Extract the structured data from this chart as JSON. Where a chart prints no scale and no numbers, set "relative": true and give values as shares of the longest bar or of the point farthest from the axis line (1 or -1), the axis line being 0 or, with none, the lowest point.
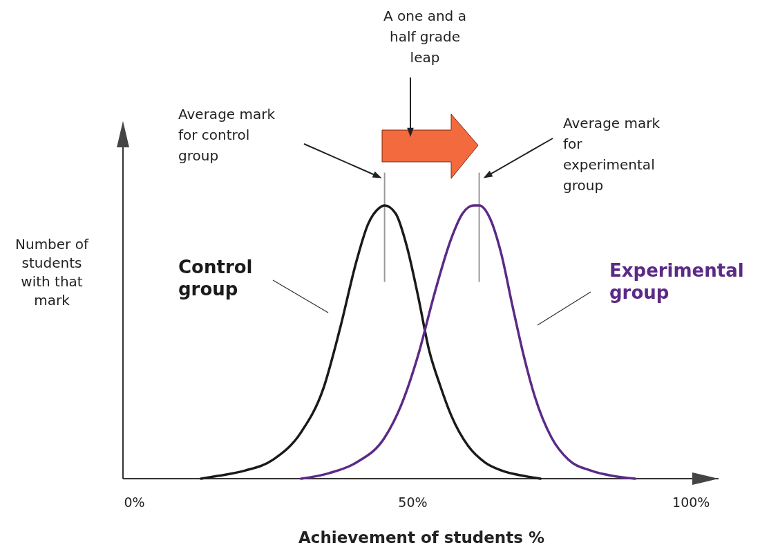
{
  "chart_data": {
    "type": "line",
    "relative": true,
    "xlabel": "Achievement of students %",
    "ylabel": "Number of students with that mark",
    "xlim": [
      -2,
      105
    ],
    "xticks": [
      {
        "value": 0,
        "label": "0%"
      },
      {
        "value": 50,
        "label": "50%"
      },
      {
        "value": 100,
        "label": "100%"
      }
    ],
    "grid": false,
    "legend": false,
    "marker": "none",
    "line_style": "solid",
    "series": [
      {
        "name": "Control group",
        "color": "#1a1a1a",
        "x": [
          12,
          15,
          20,
          25,
          30,
          34,
          37,
          40,
          42,
          44,
          45,
          47,
          49,
          51,
          53,
          55,
          57,
          60,
          63,
          66,
          70,
          73
        ],
        "values": [
          0,
          0.01,
          0.03,
          0.07,
          0.17,
          0.33,
          0.55,
          0.8,
          0.93,
          0.99,
          1,
          0.97,
          0.85,
          0.67,
          0.47,
          0.34,
          0.23,
          0.12,
          0.06,
          0.03,
          0.01,
          0
        ]
      },
      {
        "name": "Experimental group",
        "color": "#5b2a86",
        "x": [
          30,
          35,
          40,
          45,
          48,
          51,
          54,
          57,
          59,
          61,
          62,
          64,
          66,
          68,
          70,
          72,
          75,
          78,
          82,
          86,
          90
        ],
        "values": [
          0,
          0.02,
          0.06,
          0.15,
          0.27,
          0.45,
          0.68,
          0.88,
          0.97,
          1,
          1,
          0.95,
          0.82,
          0.63,
          0.45,
          0.3,
          0.15,
          0.07,
          0.03,
          0.01,
          0
        ]
      }
    ],
    "ref_lines": [
      {
        "axis": "x",
        "value": 45,
        "color": "#999999"
      },
      {
        "axis": "x",
        "value": 62,
        "color": "#999999"
      }
    ],
    "annotations": [
      "Average mark for control group",
      "Average mark for experimental group",
      "A one and a half grade leap"
    ]
  }
}
